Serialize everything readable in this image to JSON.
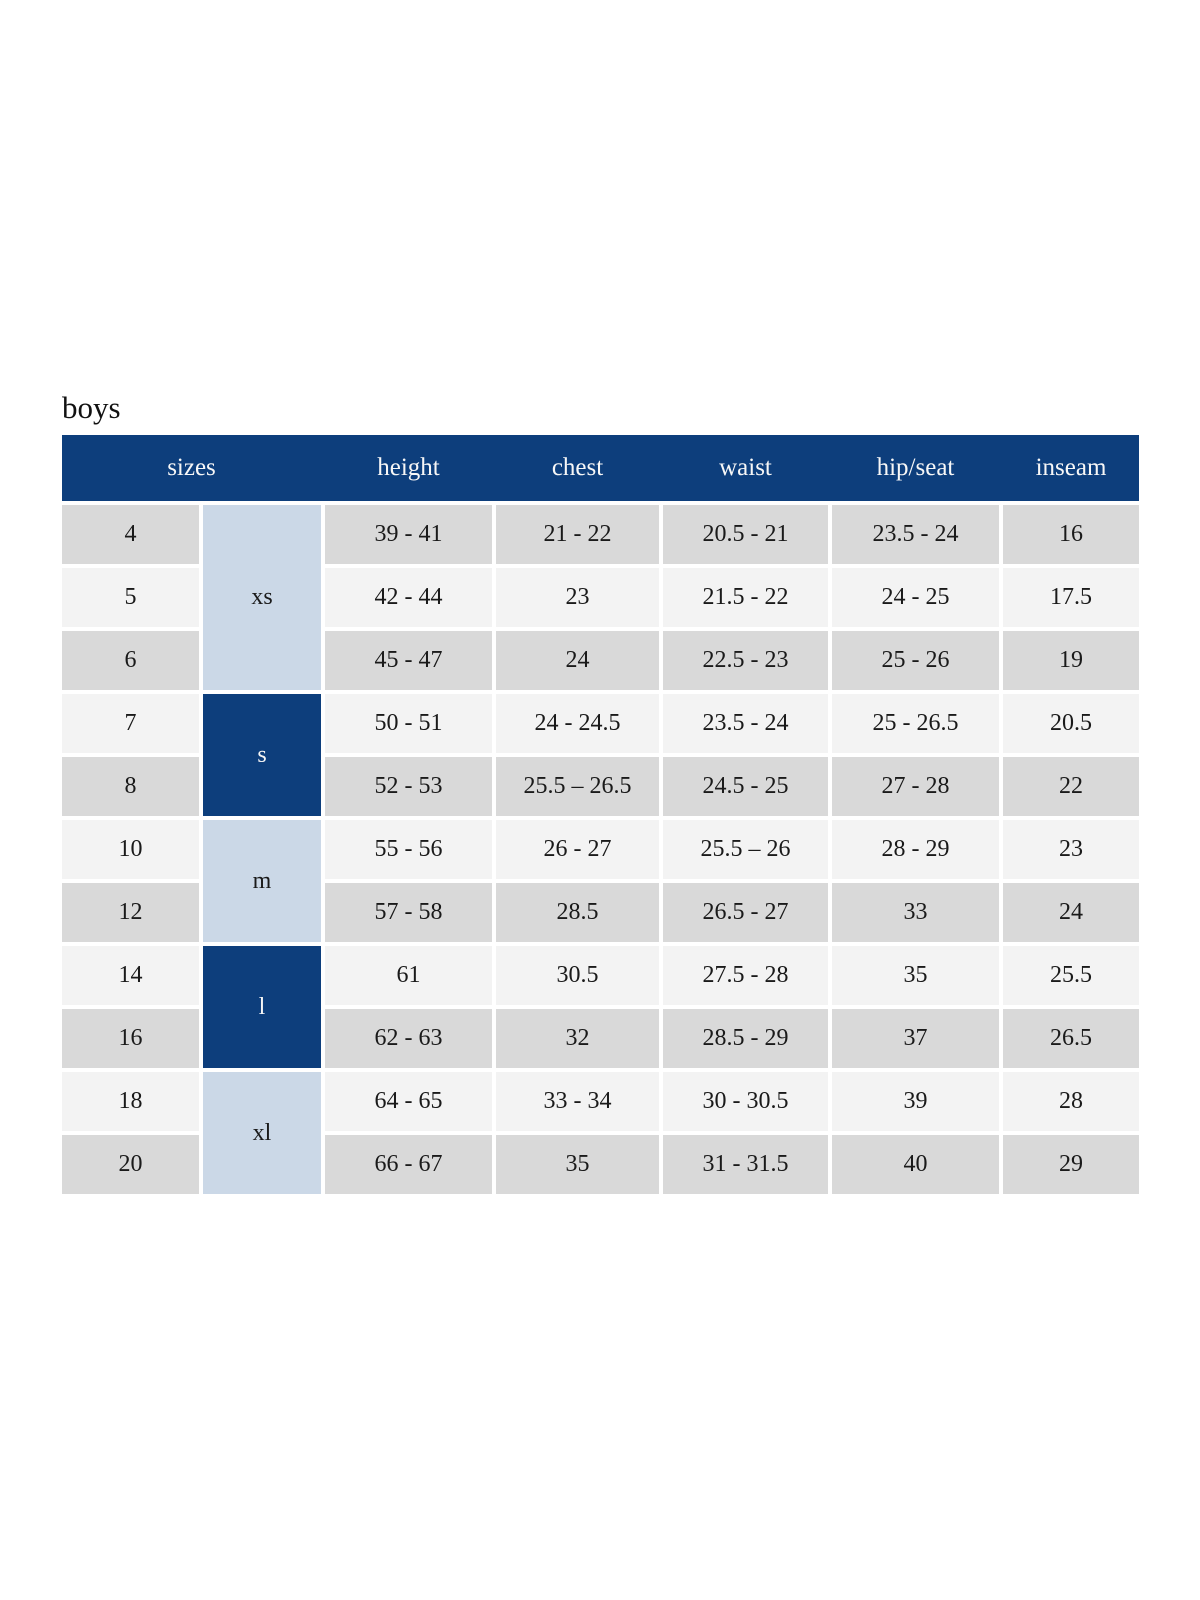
{
  "page_title": "boys",
  "colors": {
    "header_navy": "#0d3e7c",
    "group_light_blue": "#cbd8e7",
    "row_gray": "#d9d9d9",
    "row_light": "#f3f3f3",
    "text_dark": "#1a1a1a",
    "header_text": "#f7f7f7"
  },
  "chart_data": {
    "type": "table",
    "title": "boys",
    "columns": [
      "sizes",
      "height",
      "chest",
      "waist",
      "hip/seat",
      "inseam"
    ],
    "size_groups": [
      {
        "label": "xs",
        "style": "light",
        "rows": [
          {
            "size": "4",
            "height": "39 - 41",
            "chest": "21 - 22",
            "waist": "20.5 - 21",
            "hip_seat": "23.5 - 24",
            "inseam": "16"
          },
          {
            "size": "5",
            "height": "42 - 44",
            "chest": "23",
            "waist": "21.5 - 22",
            "hip_seat": "24 - 25",
            "inseam": "17.5"
          },
          {
            "size": "6",
            "height": "45 - 47",
            "chest": "24",
            "waist": "22.5 - 23",
            "hip_seat": "25 - 26",
            "inseam": "19"
          }
        ]
      },
      {
        "label": "s",
        "style": "dark",
        "rows": [
          {
            "size": "7",
            "height": "50 - 51",
            "chest": "24 - 24.5",
            "waist": "23.5 - 24",
            "hip_seat": "25 - 26.5",
            "inseam": "20.5"
          },
          {
            "size": "8",
            "height": "52 - 53",
            "chest": "25.5 – 26.5",
            "waist": "24.5 - 25",
            "hip_seat": "27 - 28",
            "inseam": "22"
          }
        ]
      },
      {
        "label": "m",
        "style": "light",
        "rows": [
          {
            "size": "10",
            "height": "55 - 56",
            "chest": "26 - 27",
            "waist": "25.5 – 26",
            "hip_seat": "28 - 29",
            "inseam": "23"
          },
          {
            "size": "12",
            "height": "57 - 58",
            "chest": "28.5",
            "waist": "26.5 - 27",
            "hip_seat": "33",
            "inseam": "24"
          }
        ]
      },
      {
        "label": "l",
        "style": "dark",
        "rows": [
          {
            "size": "14",
            "height": "61",
            "chest": "30.5",
            "waist": "27.5 - 28",
            "hip_seat": "35",
            "inseam": "25.5"
          },
          {
            "size": "16",
            "height": "62 - 63",
            "chest": "32",
            "waist": "28.5 - 29",
            "hip_seat": "37",
            "inseam": "26.5"
          }
        ]
      },
      {
        "label": "xl",
        "style": "light",
        "rows": [
          {
            "size": "18",
            "height": "64 - 65",
            "chest": "33 - 34",
            "waist": "30 - 30.5",
            "hip_seat": "39",
            "inseam": "28"
          },
          {
            "size": "20",
            "height": "66 - 67",
            "chest": "35",
            "waist": "31 - 31.5",
            "hip_seat": "40",
            "inseam": "29"
          }
        ]
      }
    ],
    "rows_flat": [
      [
        "4",
        "xs",
        "39 - 41",
        "21 - 22",
        "20.5 - 21",
        "23.5 - 24",
        "16"
      ],
      [
        "5",
        "xs",
        "42 - 44",
        "23",
        "21.5 - 22",
        "24 - 25",
        "17.5"
      ],
      [
        "6",
        "xs",
        "45 - 47",
        "24",
        "22.5 - 23",
        "25 - 26",
        "19"
      ],
      [
        "7",
        "s",
        "50 - 51",
        "24 - 24.5",
        "23.5 - 24",
        "25 - 26.5",
        "20.5"
      ],
      [
        "8",
        "s",
        "52 - 53",
        "25.5 – 26.5",
        "24.5 - 25",
        "27 - 28",
        "22"
      ],
      [
        "10",
        "m",
        "55 - 56",
        "26 - 27",
        "25.5 – 26",
        "28 - 29",
        "23"
      ],
      [
        "12",
        "m",
        "57 - 58",
        "28.5",
        "26.5 - 27",
        "33",
        "24"
      ],
      [
        "14",
        "l",
        "61",
        "30.5",
        "27.5 - 28",
        "35",
        "25.5"
      ],
      [
        "16",
        "l",
        "62 - 63",
        "32",
        "28.5 - 29",
        "37",
        "26.5"
      ],
      [
        "18",
        "xl",
        "64 - 65",
        "33 - 34",
        "30 - 30.5",
        "39",
        "28"
      ],
      [
        "20",
        "xl",
        "66 - 67",
        "35",
        "31 - 31.5",
        "40",
        "29"
      ]
    ]
  }
}
